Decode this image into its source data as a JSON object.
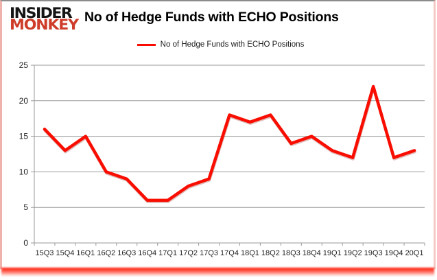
{
  "logo": {
    "line1": "INSIDER",
    "line2": "MONKEY"
  },
  "header": {
    "title": "No of Hedge Funds with ECHO Positions"
  },
  "legend": {
    "label": "No of Hedge Funds with ECHO Positions"
  },
  "chart_data": {
    "type": "line",
    "title": "No of Hedge Funds with ECHO Positions",
    "categories": [
      "15Q3",
      "15Q4",
      "16Q1",
      "16Q2",
      "16Q3",
      "16Q4",
      "17Q1",
      "17Q2",
      "17Q3",
      "17Q4",
      "18Q1",
      "18Q2",
      "18Q3",
      "18Q4",
      "19Q1",
      "19Q2",
      "19Q3",
      "19Q4",
      "20Q1"
    ],
    "series": [
      {
        "name": "No of Hedge Funds with ECHO Positions",
        "color": "#f90d00",
        "values": [
          16,
          13,
          15,
          10,
          9,
          6,
          6,
          8,
          9,
          18,
          17,
          18,
          14,
          15,
          13,
          12,
          22,
          12,
          13
        ]
      }
    ],
    "ylim": [
      0,
      25
    ],
    "yticks": [
      0,
      5,
      10,
      15,
      20,
      25
    ],
    "grid": "horizontal",
    "legend_position": "top-center"
  },
  "colors": {
    "line": "#f90d00",
    "logo_red": "#ce3d2a",
    "grid": "#9a9a9a",
    "axis": "#9a9a9a",
    "tick_label": "#1f1f1f",
    "title_text": "#000000",
    "card_background": "#ffffff",
    "border_top": "#8c8c8c",
    "border_sides": "#f0b3ac",
    "bottom_glow": "#ff1200"
  }
}
